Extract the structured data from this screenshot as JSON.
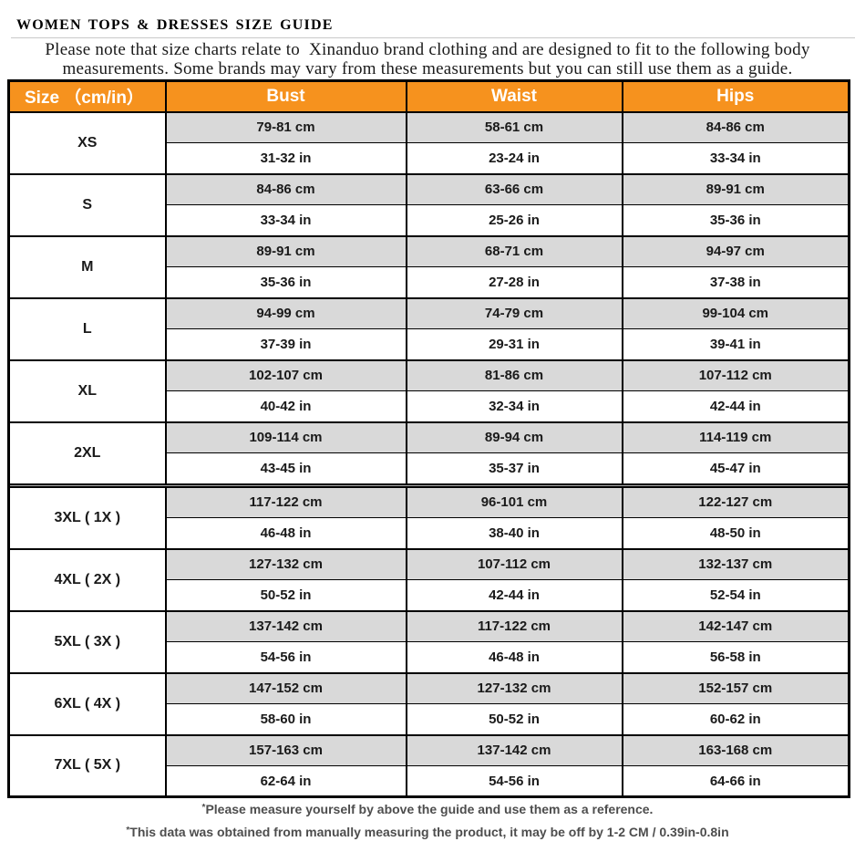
{
  "title": "WOMEN TOPS & DRESSES SIZE GUIDE",
  "note_line1": "Please note that size charts relate to  Xinanduo brand clothing and are designed to fit to the following body",
  "note_line2": "measurements. Some brands may vary from these measurements but you can still use them as a guide.",
  "colors": {
    "header_orange": "#F6921E",
    "row_gray": "#D9D9D9",
    "separator_gray": "#B0B0B0",
    "border_black": "#000000"
  },
  "table": {
    "headers": [
      "Size （cm/in）",
      "Bust",
      "Waist",
      "Hips"
    ],
    "separator_after_index": 5,
    "rows": [
      {
        "size": "XS",
        "bust_cm": "79-81 cm",
        "bust_in": "31-32 in",
        "waist_cm": "58-61 cm",
        "waist_in": "23-24 in",
        "hips_cm": "84-86 cm",
        "hips_in": "33-34 in"
      },
      {
        "size": "S",
        "bust_cm": "84-86 cm",
        "bust_in": "33-34 in",
        "waist_cm": "63-66 cm",
        "waist_in": "25-26 in",
        "hips_cm": "89-91 cm",
        "hips_in": "35-36 in"
      },
      {
        "size": "M",
        "bust_cm": "89-91 cm",
        "bust_in": "35-36 in",
        "waist_cm": "68-71 cm",
        "waist_in": "27-28 in",
        "hips_cm": "94-97 cm",
        "hips_in": "37-38 in"
      },
      {
        "size": "L",
        "bust_cm": "94-99 cm",
        "bust_in": "37-39 in",
        "waist_cm": "74-79 cm",
        "waist_in": "29-31 in",
        "hips_cm": "99-104 cm",
        "hips_in": "39-41 in"
      },
      {
        "size": "XL",
        "bust_cm": "102-107 cm",
        "bust_in": "40-42 in",
        "waist_cm": "81-86 cm",
        "waist_in": "32-34 in",
        "hips_cm": "107-112 cm",
        "hips_in": "42-44 in"
      },
      {
        "size": "2XL",
        "bust_cm": "109-114 cm",
        "bust_in": "43-45 in",
        "waist_cm": "89-94 cm",
        "waist_in": "35-37 in",
        "hips_cm": "114-119 cm",
        "hips_in": "45-47 in"
      },
      {
        "size": "3XL ( 1X )",
        "bust_cm": "117-122 cm",
        "bust_in": "46-48 in",
        "waist_cm": "96-101 cm",
        "waist_in": "38-40 in",
        "hips_cm": "122-127 cm",
        "hips_in": "48-50 in"
      },
      {
        "size": "4XL ( 2X )",
        "bust_cm": "127-132 cm",
        "bust_in": "50-52 in",
        "waist_cm": "107-112 cm",
        "waist_in": "42-44 in",
        "hips_cm": "132-137 cm",
        "hips_in": "52-54 in"
      },
      {
        "size": "5XL ( 3X )",
        "bust_cm": "137-142 cm",
        "bust_in": "54-56 in",
        "waist_cm": "117-122 cm",
        "waist_in": "46-48 in",
        "hips_cm": "142-147 cm",
        "hips_in": "56-58 in"
      },
      {
        "size": "6XL ( 4X )",
        "bust_cm": "147-152 cm",
        "bust_in": "58-60 in",
        "waist_cm": "127-132 cm",
        "waist_in": "50-52 in",
        "hips_cm": "152-157 cm",
        "hips_in": "60-62 in"
      },
      {
        "size": "7XL ( 5X )",
        "bust_cm": "157-163 cm",
        "bust_in": "62-64 in",
        "waist_cm": "137-142 cm",
        "waist_in": "54-56 in",
        "hips_cm": "163-168 cm",
        "hips_in": "64-66 in"
      }
    ]
  },
  "footer": {
    "star": "*",
    "note1": "Please measure yourself by above the guide and use them as a reference.",
    "note2": "This data was obtained from manually measuring the product, it may be off by 1-2 CM / 0.39in-0.8in"
  }
}
